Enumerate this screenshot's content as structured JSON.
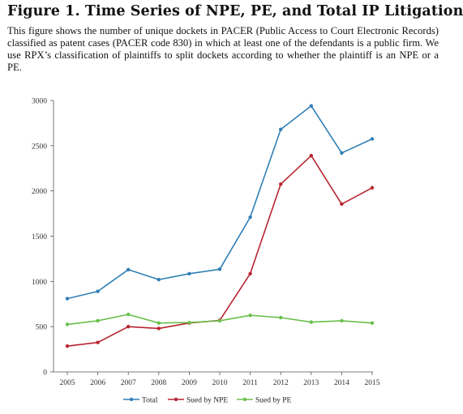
{
  "figure": {
    "title": "Figure 1. Time Series of NPE, PE, and Total IP Litigation",
    "caption": "This figure shows the number of unique dockets in PACER (Public Access to Court Electronic Records) classified as patent cases (PACER code 830) in which at least one of the defendants is a public firm. We use RPX’s classification of plaintiffs to split dockets according to whether the plaintiff is an NPE or a PE."
  },
  "chart_data": {
    "type": "line",
    "title": "",
    "xlabel": "",
    "ylabel": "",
    "x": [
      "2005",
      "2006",
      "2007",
      "2008",
      "2009",
      "2010",
      "2011",
      "2012",
      "2013",
      "2014",
      "2015"
    ],
    "ylim": [
      0,
      3000
    ],
    "yticks": [
      0,
      500,
      1000,
      1500,
      2000,
      2500,
      3000
    ],
    "grid": false,
    "legend_position": "bottom",
    "series": [
      {
        "name": "Total",
        "color": "#2f7fb5",
        "marker": "circle",
        "values": [
          810,
          890,
          1130,
          1020,
          1085,
          1135,
          1710,
          2680,
          2940,
          2420,
          2575
        ]
      },
      {
        "name": "Sued by NPE",
        "color": "#b82430",
        "marker": "circle",
        "values": [
          285,
          325,
          500,
          480,
          540,
          570,
          1085,
          2075,
          2390,
          1855,
          2035
        ]
      },
      {
        "name": "Sued by PE",
        "color": "#6abf4b",
        "marker": "circle",
        "values": [
          525,
          565,
          635,
          540,
          545,
          565,
          625,
          600,
          550,
          565,
          540
        ]
      }
    ]
  }
}
